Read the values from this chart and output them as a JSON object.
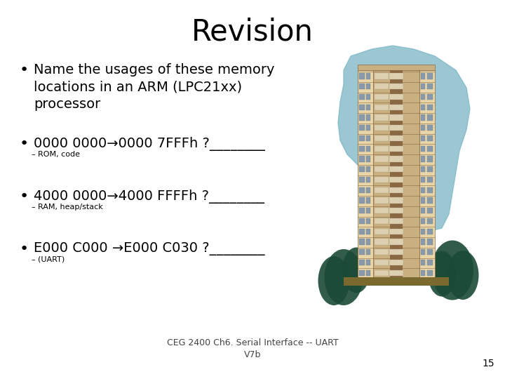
{
  "title": "Revision",
  "title_fontsize": 30,
  "background_color": "#ffffff",
  "bullet1_main": "Name the usages of these memory\nlocations in an ARM (LPC21xx)\nprocessor",
  "bullet2_main": "0000 0000→0000 7FFFh ?________",
  "bullet2_sub": "ROM, code",
  "bullet3_main": "4000 0000→4000 FFFFh ?________",
  "bullet3_sub": "RAM, heap/stack",
  "bullet4_main": "E000 C000 →E000 C030 ?________",
  "bullet4_sub": "(UART)",
  "footer": "CEG 2400 Ch6. Serial Interface -- UART\nV7b",
  "footer_fontsize": 9,
  "page_number": "15",
  "bullet_fontsize": 14,
  "sub_fontsize": 8,
  "text_color": "#000000",
  "sky_color": "#7ab5c5",
  "building_main": "#e8d5a8",
  "building_dark": "#8b6844",
  "building_stripe": "#c8b080",
  "window_color": "#8899aa",
  "tree_dark": "#1a4a35",
  "tree_mid": "#2a6b4a",
  "ground_color": "#7a6a30"
}
